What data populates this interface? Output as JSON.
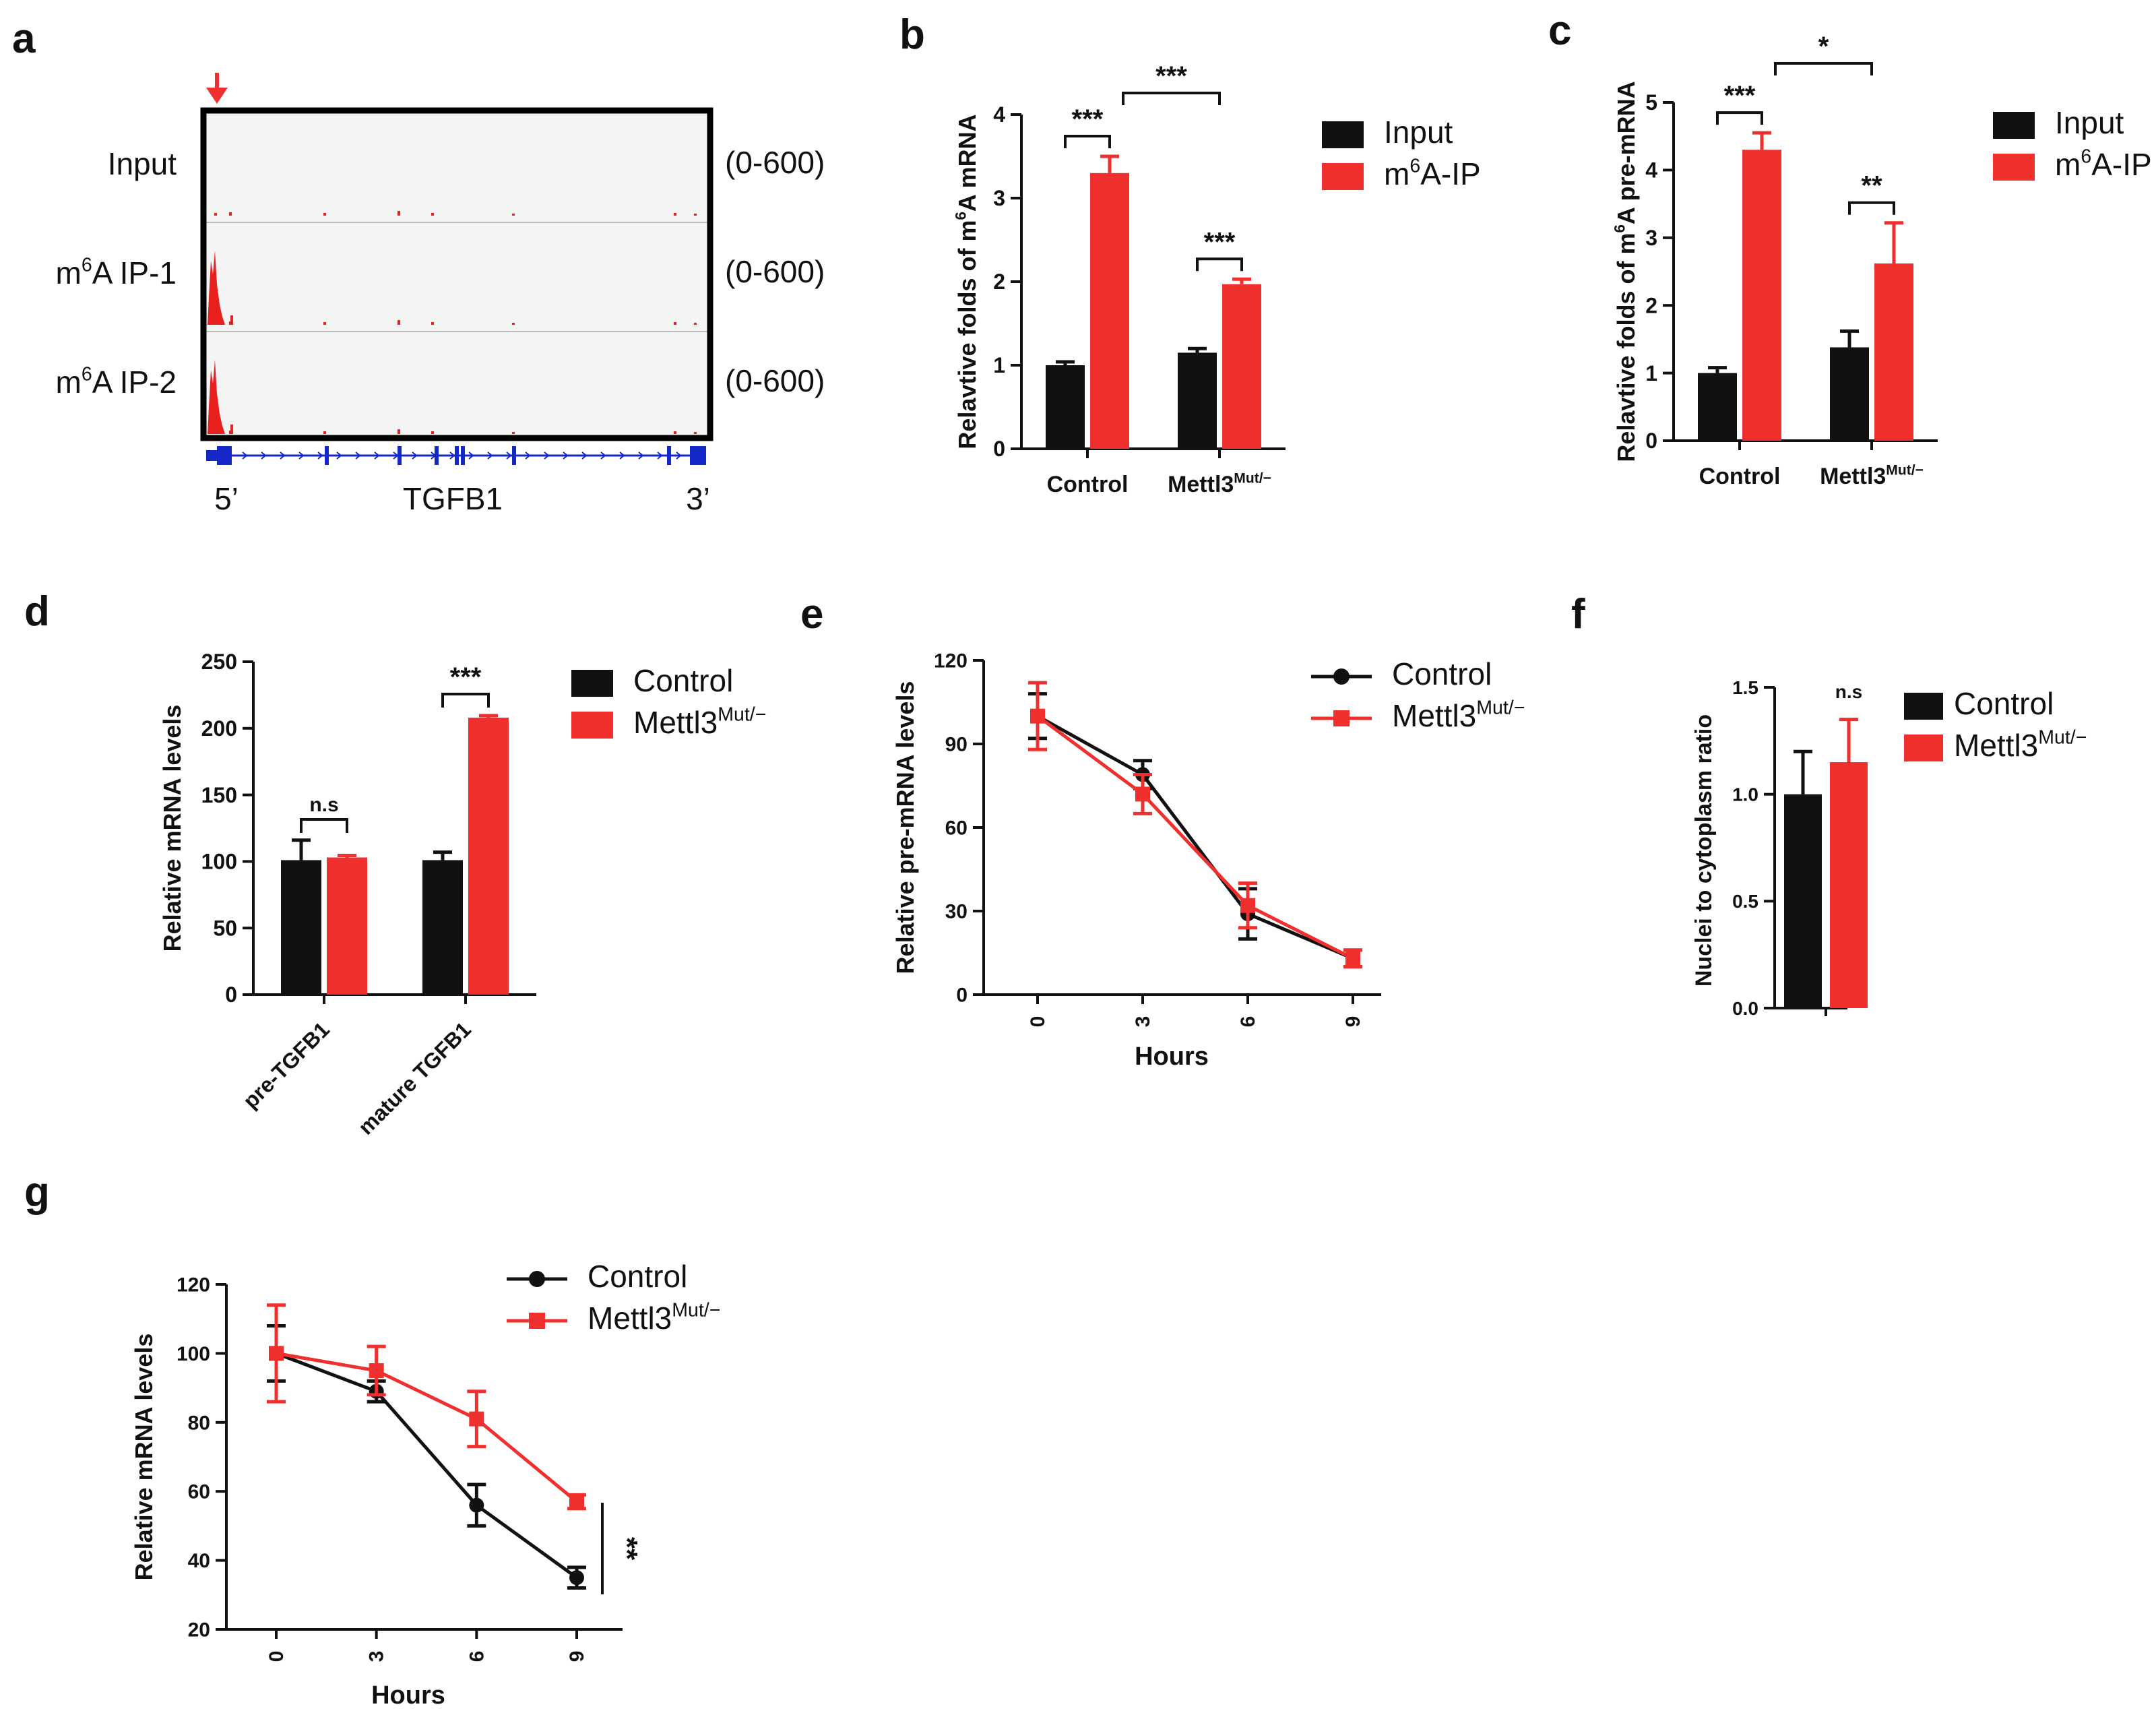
{
  "colors": {
    "black": "#111111",
    "red": "#f0302e",
    "track_bg": "#f4f4f4",
    "gene_blue": "#1428c8",
    "peak_red": "#e8201e"
  },
  "panel_a": {
    "label": "a",
    "tracks": [
      {
        "name_main": "Input",
        "name_sup": "",
        "name_rest": "",
        "range": "(0-600)"
      },
      {
        "name_main": "m",
        "name_sup": "6",
        "name_rest": "A IP-1",
        "range": "(0-600)"
      },
      {
        "name_main": "m",
        "name_sup": "6",
        "name_rest": "A IP-2",
        "range": "(0-600)"
      }
    ],
    "gene": "TGFB1",
    "five_prime": "5’",
    "three_prime": "3’"
  },
  "panel_labels": {
    "b": "b",
    "c": "c",
    "d": "d",
    "e": "e",
    "f": "f",
    "g": "g"
  },
  "chart_data": [
    {
      "id": "b",
      "type": "bar",
      "ylabel": "Relavtive folds of m6A mRNA",
      "categories": [
        {
          "text": "Control",
          "sup": ""
        },
        {
          "text": "Mettl3",
          "sup": "Mut/−"
        }
      ],
      "series": [
        {
          "name": "Input",
          "name_sup": "",
          "values": [
            1.0,
            1.15
          ],
          "errors": [
            0.04,
            0.05
          ]
        },
        {
          "name": "m",
          "name_sup": "6",
          "name_rest": "A-IP",
          "values": [
            3.3,
            1.97
          ],
          "errors": [
            0.2,
            0.06
          ]
        }
      ],
      "ylim": [
        0,
        4
      ],
      "yticks": [
        "0",
        "1",
        "2",
        "3",
        "4"
      ],
      "significance": [
        "***",
        "***",
        "***"
      ]
    },
    {
      "id": "c",
      "type": "bar",
      "ylabel": "Relavtive folds of m6A pre-mRNA",
      "categories": [
        {
          "text": "Control",
          "sup": ""
        },
        {
          "text": "Mettl3",
          "sup": "Mut/−"
        }
      ],
      "series": [
        {
          "name": "Input",
          "name_sup": "",
          "values": [
            1.0,
            1.38
          ],
          "errors": [
            0.08,
            0.24
          ]
        },
        {
          "name": "m",
          "name_sup": "6",
          "name_rest": "A-IP",
          "values": [
            4.3,
            2.62
          ],
          "errors": [
            0.25,
            0.6
          ]
        }
      ],
      "ylim": [
        0,
        5
      ],
      "yticks": [
        "0",
        "1",
        "2",
        "3",
        "4",
        "5"
      ],
      "significance": [
        "***",
        "**",
        "*"
      ]
    },
    {
      "id": "d",
      "type": "bar",
      "ylabel": "Relative mRNA levels",
      "categories": [
        {
          "text": "pre-TGFB1"
        },
        {
          "text": "mature TGFB1"
        }
      ],
      "series": [
        {
          "name": "Control",
          "name_sup": "",
          "values": [
            101,
            101
          ],
          "errors": [
            15,
            6
          ]
        },
        {
          "name": "Mettl3",
          "name_sup": "Mut/−",
          "values": [
            103,
            208
          ],
          "errors": [
            1.5,
            1.5
          ]
        }
      ],
      "ylim": [
        0,
        250
      ],
      "yticks": [
        "0",
        "50",
        "100",
        "150",
        "200",
        "250"
      ],
      "significance": [
        "n.s",
        "***"
      ]
    },
    {
      "id": "e",
      "type": "line",
      "xlabel": "Hours",
      "ylabel": "Relative pre-mRNA levels",
      "x": [
        0,
        3,
        6,
        9
      ],
      "xticks": [
        "0",
        "3",
        "6",
        "9"
      ],
      "series": [
        {
          "name": "Control",
          "name_sup": "",
          "values": [
            100,
            79,
            29,
            13
          ],
          "errors": [
            8,
            5,
            9,
            3
          ]
        },
        {
          "name": "Mettl3",
          "name_sup": "Mut/−",
          "values": [
            100,
            72,
            32,
            13
          ],
          "errors": [
            12,
            7,
            8,
            3
          ]
        }
      ],
      "ylim": [
        0,
        120
      ],
      "yticks": [
        "0",
        "30",
        "60",
        "90",
        "120"
      ]
    },
    {
      "id": "f",
      "type": "bar",
      "ylabel": "Nuclei to cytoplasm ratio",
      "series": [
        {
          "name": "Control",
          "name_sup": "",
          "values": [
            1.0
          ],
          "errors": [
            0.2
          ]
        },
        {
          "name": "Mettl3",
          "name_sup": "Mut/−",
          "values": [
            1.15
          ],
          "errors": [
            0.2
          ]
        }
      ],
      "ylim": [
        0,
        1.5
      ],
      "yticks": [
        "0.0",
        "0.5",
        "1.0",
        "1.5"
      ],
      "significance": [
        "n.s"
      ]
    },
    {
      "id": "g",
      "type": "line",
      "xlabel": "Hours",
      "ylabel": "Relative mRNA levels",
      "x": [
        0,
        3,
        6,
        9
      ],
      "xticks": [
        "0",
        "3",
        "6",
        "9"
      ],
      "series": [
        {
          "name": "Control",
          "name_sup": "",
          "values": [
            100,
            89,
            56,
            35
          ],
          "errors": [
            8,
            3,
            6,
            3
          ]
        },
        {
          "name": "Mettl3",
          "name_sup": "Mut/−",
          "values": [
            100,
            95,
            81,
            57
          ],
          "errors": [
            14,
            7,
            8,
            2
          ]
        }
      ],
      "ylim": [
        20,
        120
      ],
      "yticks": [
        "20",
        "40",
        "60",
        "80",
        "100",
        "120"
      ],
      "significance": [
        "**"
      ]
    }
  ]
}
